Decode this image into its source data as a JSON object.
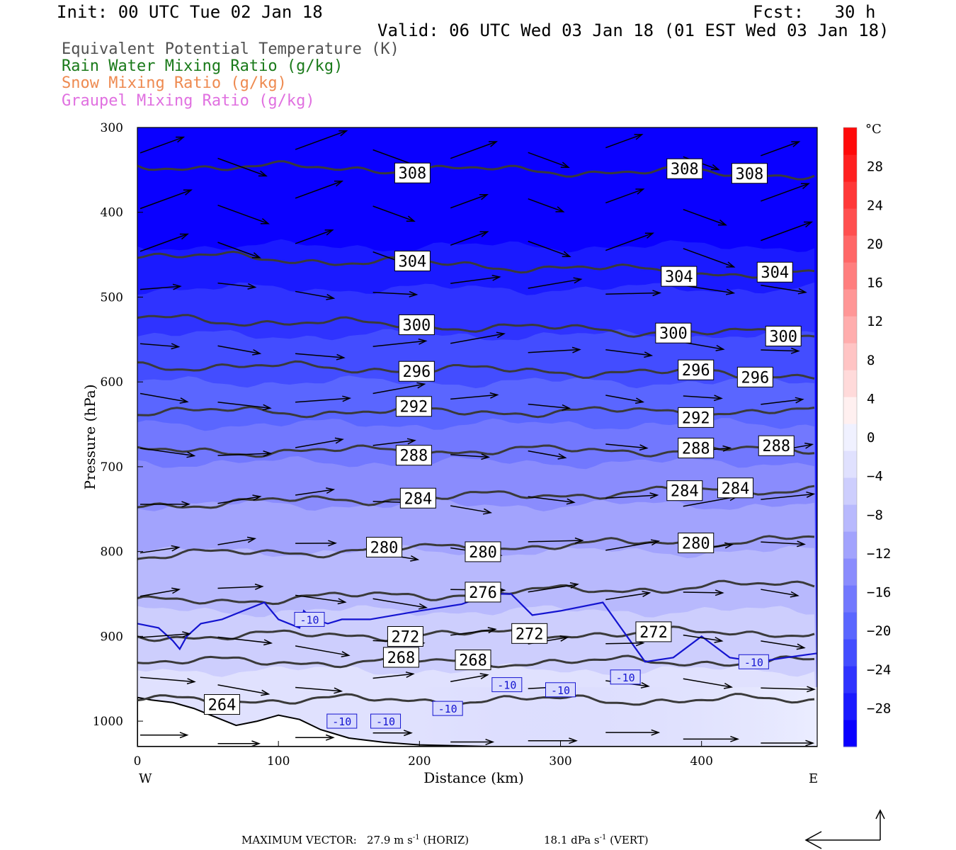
{
  "header": {
    "init": "Init: 00 UTC Tue 02 Jan 18",
    "fcst": "Fcst:   30 h",
    "valid": "Valid: 06 UTC Wed 03 Jan 18 (01 EST Wed 03 Jan 18)"
  },
  "legend": [
    {
      "label": "Equivalent Potential Temperature (K)",
      "color": "#505050"
    },
    {
      "label": "Rain Water Mixing Ratio (g/kg)",
      "color": "#1a7a1a"
    },
    {
      "label": "Snow Mixing Ratio (g/kg)",
      "color": "#ee8a50"
    },
    {
      "label": "Graupel Mixing Ratio (g/kg)",
      "color": "#e070e0"
    }
  ],
  "footer": {
    "max_vector_label": "MAXIMUM VECTOR:",
    "horiz": "27.9 m s",
    "horiz_unit": "-1",
    "horiz_tag": "(HORIZ)",
    "vert": "18.1 dPa s",
    "vert_unit": "-1",
    "vert_tag": "(VERT)"
  },
  "chart_data": {
    "type": "cross-section",
    "xlabel": "Distance (km)",
    "ylabel": "Pressure (hPa)",
    "xlim": [
      0,
      482
    ],
    "ylim": [
      1030,
      300
    ],
    "x_ticks": [
      0,
      100,
      200,
      300,
      400
    ],
    "y_ticks": [
      300,
      400,
      500,
      600,
      700,
      800,
      900,
      1000
    ],
    "x_end_labels": {
      "left": "W",
      "right": "E"
    },
    "colorbar": {
      "unit": "°C",
      "ticks": [
        28,
        24,
        20,
        16,
        12,
        8,
        4,
        0,
        -4,
        -8,
        -12,
        -16,
        -20,
        -24,
        -28
      ],
      "range": [
        -32,
        32
      ],
      "colors": [
        "#0a00ff",
        "#1a1aff",
        "#2f33ff",
        "#434dff",
        "#5a66ff",
        "#7278fe",
        "#8a8cfd",
        "#a2a3fd",
        "#b8b9fd",
        "#cdcefd",
        "#e0e1fe",
        "#f0f1ff",
        "#fff0f0",
        "#ffdada",
        "#ffc4c4",
        "#ffadad",
        "#ff9696",
        "#ff7e7e",
        "#ff6767",
        "#ff4f4f",
        "#ff3838",
        "#ff2020",
        "#ff0a0a"
      ]
    },
    "theta_e_contours": [
      {
        "level": 308,
        "p_left": 345,
        "p_right": 355,
        "labels_x": [
          195,
          388,
          434
        ]
      },
      {
        "level": 304,
        "p_left": 450,
        "p_right": 475,
        "labels_x": [
          195,
          384,
          452
        ]
      },
      {
        "level": 300,
        "p_left": 525,
        "p_right": 545,
        "labels_x": [
          198,
          380,
          458
        ]
      },
      {
        "level": 296,
        "p_left": 580,
        "p_right": 592,
        "labels_x": [
          198,
          396,
          438
        ]
      },
      {
        "level": 292,
        "p_left": 635,
        "p_right": 635,
        "labels_x": [
          196,
          396
        ]
      },
      {
        "level": 288,
        "p_left": 682,
        "p_right": 680,
        "labels_x": [
          196,
          396,
          453
        ]
      },
      {
        "level": 284,
        "p_left": 745,
        "p_right": 725,
        "labels_x": [
          199,
          388,
          424
        ]
      },
      {
        "level": 280,
        "p_left": 805,
        "p_right": 785,
        "labels_x": [
          175,
          245,
          396
        ]
      },
      {
        "level": 276,
        "p_left": 860,
        "p_right": 838,
        "labels_x": [
          245
        ]
      },
      {
        "level": 272,
        "p_left": 900,
        "p_right": 895,
        "labels_x": [
          190,
          278,
          366
        ]
      },
      {
        "level": 268,
        "p_left": 930,
        "p_right": 930,
        "labels_x": [
          187,
          238
        ]
      },
      {
        "level": 264,
        "p_left": 975,
        "p_right": 975,
        "labels_x": [
          60
        ]
      }
    ],
    "temperature_contour": {
      "level": -10,
      "labels": [
        "-10",
        "-10",
        "-10",
        "-10",
        "-10",
        "-10",
        "-10",
        "-10"
      ]
    }
  }
}
